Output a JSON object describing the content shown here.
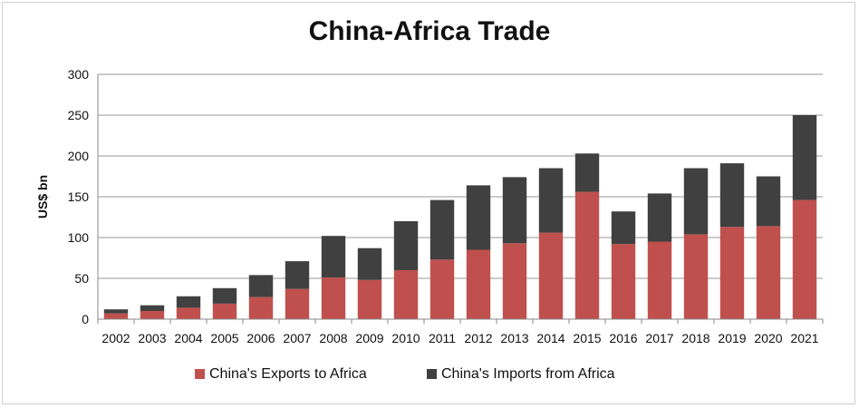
{
  "chart_data": {
    "type": "bar",
    "stacked": true,
    "title": "China-Africa Trade",
    "xlabel": "",
    "ylabel": "US$ bn",
    "ylim": [
      0,
      300
    ],
    "yticks": [
      0,
      50,
      100,
      150,
      200,
      250,
      300
    ],
    "grid": true,
    "legend_position": "bottom",
    "categories": [
      "2002",
      "2003",
      "2004",
      "2005",
      "2006",
      "2007",
      "2008",
      "2009",
      "2010",
      "2011",
      "2012",
      "2013",
      "2014",
      "2015",
      "2016",
      "2017",
      "2018",
      "2019",
      "2020",
      "2021"
    ],
    "series": [
      {
        "name": "China's Exports to Africa",
        "color": "#c0504d",
        "values": [
          7,
          10,
          14,
          19,
          27,
          37,
          51,
          48,
          60,
          73,
          85,
          93,
          106,
          156,
          92,
          95,
          104,
          113,
          114,
          146
        ]
      },
      {
        "name": "China's Imports from Africa",
        "color": "#404040",
        "values": [
          5,
          7,
          14,
          19,
          27,
          34,
          51,
          39,
          60,
          73,
          79,
          81,
          79,
          47,
          40,
          59,
          81,
          78,
          61,
          104
        ]
      }
    ]
  }
}
